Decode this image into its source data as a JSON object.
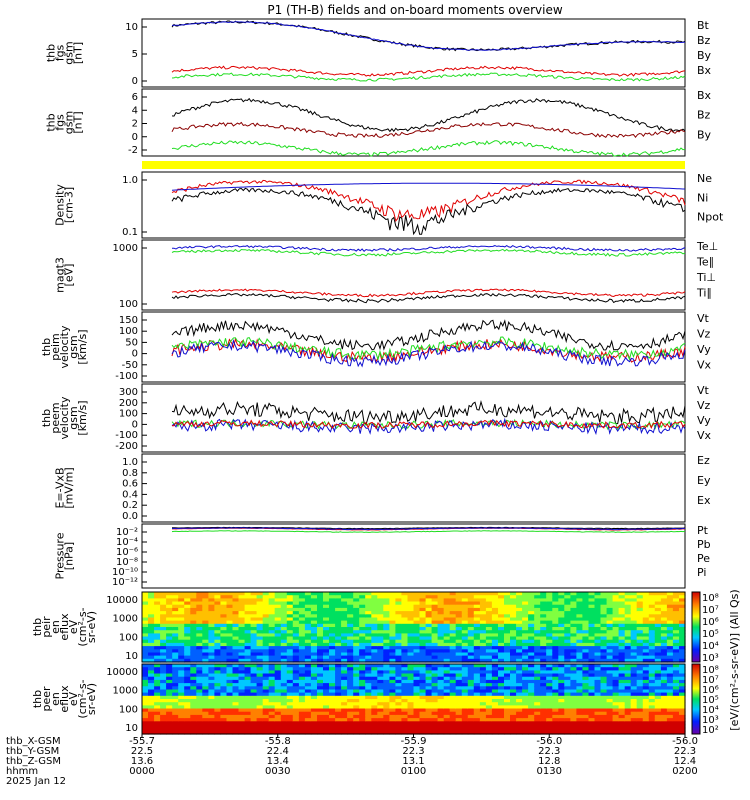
{
  "title": "P1 (TH-B) fields and on-board moments overview",
  "colors": {
    "black": "#000000",
    "red": "#e00000",
    "green": "#22dd22",
    "blue": "#1010d0",
    "yellow": "#ffff00",
    "darkred": "#8b0000"
  },
  "chart_data": [
    {
      "type": "line",
      "id": "fgs_gsm",
      "ylabel": [
        "thb",
        "fgs",
        "gsm",
        "[nT]"
      ],
      "ylim": [
        -3,
        12
      ],
      "yticks": [
        "10",
        "5",
        "0"
      ],
      "legend": [
        {
          "name": "Bt",
          "color": "black"
        },
        {
          "name": "Bz",
          "color": "red"
        },
        {
          "name": "By",
          "color": "green"
        },
        {
          "name": "Bx",
          "color": "blue"
        }
      ]
    },
    {
      "type": "line",
      "id": "fgs_gse",
      "ylabel": [
        "thb",
        "fgs",
        "gsm",
        "[nT]"
      ],
      "ylim": [
        -3,
        6
      ],
      "yticks": [
        "6",
        "4",
        "2",
        "0",
        "-2"
      ],
      "legend": [
        {
          "name": "Bx",
          "color": "black"
        },
        {
          "name": "Bz",
          "color": "darkred"
        },
        {
          "name": "By",
          "color": "green"
        }
      ]
    },
    {
      "type": "bar",
      "id": "mode_bar",
      "color": "yellow"
    },
    {
      "type": "line",
      "id": "density",
      "ylabel": [
        "Density",
        "[cm-3]"
      ],
      "yscale": "log",
      "ylim": [
        0.05,
        1.2
      ],
      "yticks": [
        "1.0",
        "0.1"
      ],
      "legend": [
        {
          "name": "Ne",
          "color": "red"
        },
        {
          "name": "Ni",
          "color": "black"
        },
        {
          "name": "Npot",
          "color": "blue"
        }
      ]
    },
    {
      "type": "line",
      "id": "temperature",
      "ylabel": [
        "magt3",
        "[eV]"
      ],
      "yscale": "log",
      "ylim": [
        30,
        1500
      ],
      "yticks": [
        "1000",
        "100"
      ],
      "legend": [
        {
          "name": "Te⊥",
          "color": "red"
        },
        {
          "name": "Te∥",
          "color": "black"
        },
        {
          "name": "Ti⊥",
          "color": "red"
        },
        {
          "name": "Ti∥",
          "color": "green"
        }
      ]
    },
    {
      "type": "line",
      "id": "peim_velocity",
      "ylabel": [
        "thb",
        "peim",
        "velocity",
        "gsm",
        "[km/s]"
      ],
      "ylim": [
        -120,
        150
      ],
      "yticks": [
        "150",
        "100",
        "50",
        "0",
        "-50",
        "-100"
      ],
      "legend": [
        {
          "name": "Vt",
          "color": "black"
        },
        {
          "name": "Vz",
          "color": "red"
        },
        {
          "name": "Vy",
          "color": "green"
        },
        {
          "name": "Vx",
          "color": "blue"
        }
      ]
    },
    {
      "type": "line",
      "id": "peem_velocity",
      "ylabel": [
        "thb",
        "peem",
        "velocity",
        "gsm",
        "[km/s]"
      ],
      "ylim": [
        -220,
        320
      ],
      "yticks": [
        "300",
        "200",
        "100",
        "0",
        "-100",
        "-200"
      ],
      "legend": [
        {
          "name": "Vt",
          "color": "black"
        },
        {
          "name": "Vz",
          "color": "red"
        },
        {
          "name": "Vy",
          "color": "green"
        },
        {
          "name": "Vx",
          "color": "blue"
        }
      ]
    },
    {
      "type": "line",
      "id": "efield",
      "ylabel": [
        "E=-VxB",
        "[mV/m]"
      ],
      "ylim": [
        0,
        1
      ],
      "yticks": [
        "1.0",
        "0.8",
        "0.6",
        "0.4",
        "0.2",
        "0.0"
      ],
      "legend": [
        {
          "name": "Ez",
          "color": "red"
        },
        {
          "name": "Ey",
          "color": "green"
        },
        {
          "name": "Ex",
          "color": "blue"
        }
      ]
    },
    {
      "type": "line",
      "id": "pressure",
      "ylabel": [
        "Pressure",
        "[nPa]"
      ],
      "yscale": "log",
      "ylim": [
        1e-13,
        0.1
      ],
      "yticks": [
        "10⁻²",
        "10⁻⁴",
        "10⁻⁶",
        "10⁻⁸",
        "10⁻¹⁰",
        "10⁻¹²"
      ],
      "legend": [
        {
          "name": "Pt",
          "color": "black"
        },
        {
          "name": "Pb",
          "color": "red"
        },
        {
          "name": "Pe",
          "color": "green"
        },
        {
          "name": "Pi",
          "color": "blue"
        }
      ]
    },
    {
      "type": "heatmap",
      "id": "peir",
      "ylabel": [
        "thb",
        "peir",
        "en",
        "eflux",
        "eV",
        "(cm²-s-",
        "sr-eV)"
      ],
      "yscale": "log",
      "ylim": [
        5,
        30000
      ],
      "yticks": [
        "10000",
        "1000",
        "100",
        "10"
      ],
      "colorbar_ticks": [
        "10⁸",
        "10⁷",
        "10⁶",
        "10⁵",
        "10⁴",
        "10³"
      ]
    },
    {
      "type": "heatmap",
      "id": "peer",
      "ylabel": [
        "thb",
        "peer",
        "en",
        "eflux",
        "eV",
        "(cm²-s-",
        "sr-eV)"
      ],
      "yscale": "log",
      "ylim": [
        5,
        30000
      ],
      "yticks": [
        "10000",
        "1000",
        "100",
        "10"
      ],
      "colorbar_ticks": [
        "10⁸",
        "10⁷",
        "10⁶",
        "10⁵",
        "10⁴",
        "10³",
        "10²"
      ]
    }
  ],
  "colorbar_label": "[eV/(cm²-s-sr-eV)] (All Qs)",
  "xaxis": {
    "row_labels": [
      "thb_X-GSM",
      "thb_Y-GSM",
      "thb_Z-GSM",
      "hhmm",
      "2025 Jan 12"
    ],
    "ticks": [
      {
        "x": "-55.7",
        "y": "22.5",
        "z": "13.6",
        "t": "0000"
      },
      {
        "x": "-55.8",
        "y": "22.4",
        "z": "13.4",
        "t": "0030"
      },
      {
        "x": "-55.9",
        "y": "22.3",
        "z": "13.1",
        "t": "0100"
      },
      {
        "x": "-56.0",
        "y": "22.3",
        "z": "12.8",
        "t": "0130"
      },
      {
        "x": "-56.0",
        "y": "22.3",
        "z": "12.4",
        "t": "0200"
      }
    ]
  }
}
